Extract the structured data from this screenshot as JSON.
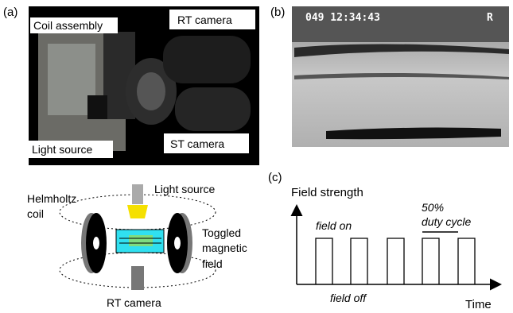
{
  "panel_a": {
    "label": "(a)",
    "photo_labels": [
      "Coil assembly",
      "RT camera",
      "Light source",
      "ST camera"
    ],
    "diagram": {
      "coil_label": [
        "Helmholtz",
        "coil"
      ],
      "light_label": "Light source",
      "field_label": [
        "Toggled",
        "magnetic",
        "field"
      ],
      "camera_label": "RT camera"
    }
  },
  "panel_b": {
    "label": "(b)",
    "timestamp": "049 12:34:43",
    "flag": "R"
  },
  "panel_c": {
    "label": "(c)",
    "y_label": "Field strength",
    "x_label": "Time",
    "on_label": "field on",
    "off_label": "field off",
    "duty_label": [
      "50%",
      "duty cycle"
    ]
  }
}
